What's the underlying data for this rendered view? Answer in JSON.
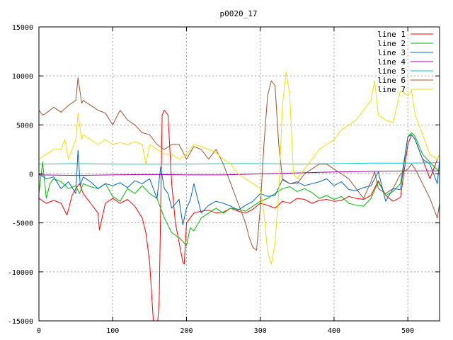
{
  "chart_data": {
    "type": "line",
    "title": "p0020_17",
    "xlabel": "",
    "ylabel": "",
    "xlim": [
      0,
      543
    ],
    "ylim": [
      -15000,
      15000
    ],
    "x_ticks": [
      0,
      100,
      200,
      300,
      400,
      500
    ],
    "y_ticks": [
      -15000,
      -10000,
      -5000,
      0,
      5000,
      10000,
      15000
    ],
    "grid": true,
    "legend_position": "top-right",
    "series": [
      {
        "name": "line 1",
        "color": "#ff0000",
        "x": [
          0,
          10,
          20,
          30,
          38,
          45,
          50,
          55,
          60,
          70,
          80,
          82,
          90,
          100,
          110,
          120,
          130,
          140,
          145,
          150,
          155,
          160,
          163,
          167,
          170,
          175,
          180,
          185,
          190,
          195,
          197,
          200,
          205,
          210,
          220,
          230,
          240,
          250,
          260,
          270,
          280,
          290,
          300,
          310,
          320,
          330,
          340,
          350,
          360,
          370,
          380,
          390,
          400,
          410,
          420,
          430,
          440,
          450,
          460,
          470,
          480,
          490,
          500,
          505,
          510,
          520,
          530,
          540,
          543
        ],
        "y": [
          -2500,
          -3000,
          -2700,
          -3000,
          -4200,
          -2200,
          -1500,
          -1000,
          -2000,
          -3000,
          -4000,
          -5700,
          -3000,
          -2500,
          -3000,
          -2600,
          -3300,
          -4500,
          -6000,
          -9000,
          -15000,
          -16000,
          -13000,
          6000,
          6500,
          6000,
          -1000,
          -5000,
          -7000,
          -9000,
          -9200,
          -5000,
          -4500,
          -4000,
          -3800,
          -3700,
          -4000,
          -3900,
          -3500,
          -3800,
          -4000,
          -3600,
          -3000,
          -3200,
          -3500,
          -2800,
          -3000,
          -2500,
          -2600,
          -3000,
          -2700,
          -2600,
          -2800,
          -2700,
          -2300,
          -2500,
          -2600,
          -2200,
          -700,
          -2200,
          -2800,
          -2400,
          3000,
          4000,
          3500,
          1500,
          -500,
          1500,
          2000
        ]
      },
      {
        "name": "line 2",
        "color": "#00bb00",
        "x": [
          0,
          5,
          10,
          15,
          20,
          30,
          40,
          50,
          55,
          60,
          70,
          80,
          90,
          100,
          110,
          120,
          130,
          140,
          150,
          160,
          170,
          180,
          190,
          200,
          205,
          210,
          220,
          230,
          240,
          250,
          260,
          270,
          280,
          290,
          300,
          310,
          320,
          330,
          340,
          350,
          360,
          370,
          380,
          390,
          400,
          410,
          420,
          430,
          440,
          450,
          460,
          470,
          480,
          490,
          500,
          505,
          510,
          520,
          530,
          540,
          543
        ],
        "y": [
          -2000,
          1200,
          -2500,
          -1000,
          -500,
          -800,
          -1500,
          -1200,
          -2000,
          -1000,
          -1300,
          -1500,
          -1000,
          -2300,
          -2800,
          -1500,
          -2000,
          -1200,
          -2000,
          -2500,
          -4500,
          -6000,
          -6500,
          -7300,
          -5500,
          -5800,
          -4500,
          -4000,
          -3500,
          -4000,
          -3500,
          -3600,
          -3800,
          -3300,
          -2800,
          -2500,
          -2000,
          -1500,
          -1300,
          -1800,
          -1500,
          -1900,
          -2500,
          -2200,
          -2600,
          -2300,
          -3000,
          -3200,
          -3300,
          -2500,
          -800,
          -2200,
          -1800,
          -1000,
          3800,
          4200,
          3800,
          2000,
          1200,
          400,
          300
        ]
      },
      {
        "name": "line 3",
        "color": "#0066cc",
        "x": [
          0,
          10,
          20,
          30,
          40,
          50,
          53,
          56,
          60,
          70,
          80,
          90,
          100,
          110,
          120,
          130,
          140,
          150,
          160,
          165,
          170,
          175,
          180,
          190,
          195,
          200,
          205,
          210,
          220,
          230,
          240,
          250,
          260,
          270,
          280,
          290,
          300,
          310,
          320,
          330,
          340,
          350,
          360,
          370,
          380,
          390,
          400,
          410,
          420,
          430,
          440,
          450,
          460,
          470,
          480,
          490,
          500,
          505,
          510,
          520,
          530,
          540,
          543
        ],
        "y": [
          0,
          -500,
          -300,
          -1500,
          -800,
          -2000,
          2400,
          -1200,
          -300,
          -800,
          -1500,
          -1000,
          -1200,
          -900,
          -1400,
          -700,
          -1000,
          -500,
          -2500,
          700,
          -1500,
          -2000,
          -3500,
          -2600,
          -5200,
          -3500,
          -2700,
          -1000,
          -4000,
          -3200,
          -2800,
          -3000,
          -3300,
          -3700,
          -3200,
          -2800,
          -2000,
          -2300,
          -2200,
          -600,
          -1000,
          -800,
          -1200,
          -1000,
          -800,
          -500,
          -1200,
          -800,
          -1600,
          -1700,
          -1400,
          -1200,
          200,
          -2800,
          -1500,
          -1600,
          3800,
          4000,
          3500,
          1500,
          1000,
          -1000,
          1500
        ]
      },
      {
        "name": "line 4",
        "color": "#aa00aa",
        "x": [
          0,
          50,
          100,
          150,
          200,
          250,
          300,
          350,
          400,
          450,
          500,
          543
        ],
        "y": [
          -100,
          -150,
          -100,
          -50,
          -100,
          -100,
          0,
          100,
          200,
          250,
          300,
          300
        ]
      },
      {
        "name": "line 5",
        "color": "#00cccc",
        "x": [
          0,
          50,
          100,
          150,
          200,
          250,
          300,
          350,
          400,
          450,
          500,
          543
        ],
        "y": [
          1000,
          1050,
          1000,
          1000,
          1000,
          1050,
          1050,
          1000,
          1050,
          1100,
          1100,
          1150
        ]
      },
      {
        "name": "line 6",
        "color": "#a0522d",
        "x": [
          0,
          5,
          10,
          20,
          30,
          40,
          50,
          53,
          58,
          60,
          70,
          80,
          90,
          100,
          110,
          120,
          130,
          140,
          150,
          160,
          170,
          180,
          190,
          200,
          210,
          220,
          230,
          240,
          250,
          260,
          270,
          280,
          285,
          290,
          295,
          300,
          305,
          310,
          315,
          320,
          325,
          330,
          340,
          350,
          360,
          370,
          380,
          390,
          400,
          410,
          420,
          430,
          440,
          450,
          455,
          460,
          470,
          480,
          490,
          500,
          505,
          510,
          520,
          530,
          540,
          543
        ],
        "y": [
          6500,
          6000,
          6200,
          6800,
          6300,
          7000,
          7500,
          9800,
          7200,
          7500,
          7000,
          6500,
          6200,
          5000,
          6500,
          5500,
          5000,
          4200,
          4000,
          3000,
          2500,
          3000,
          3000,
          1500,
          2800,
          2500,
          1500,
          2500,
          1000,
          -1000,
          -3000,
          -5000,
          -6500,
          -7500,
          -7800,
          -3500,
          3000,
          8000,
          9500,
          9000,
          3000,
          -500,
          -1000,
          -1000,
          0,
          500,
          1000,
          1000,
          500,
          0,
          -500,
          -1500,
          -2500,
          -800,
          200,
          -1500,
          -2000,
          -1500,
          0,
          500,
          1000,
          500,
          -1000,
          -2500,
          -4500,
          -3000
        ]
      },
      {
        "name": "line 7",
        "color": "#f0e000",
        "x": [
          0,
          10,
          20,
          30,
          35,
          40,
          50,
          53,
          58,
          60,
          70,
          80,
          90,
          100,
          110,
          120,
          130,
          140,
          145,
          150,
          160,
          170,
          180,
          190,
          200,
          210,
          220,
          230,
          240,
          250,
          260,
          270,
          280,
          290,
          300,
          305,
          310,
          315,
          320,
          325,
          330,
          335,
          340,
          345,
          350,
          360,
          370,
          380,
          390,
          400,
          410,
          420,
          430,
          440,
          450,
          455,
          460,
          470,
          480,
          490,
          500,
          505,
          510,
          520,
          530,
          540,
          543
        ],
        "y": [
          1500,
          2000,
          2500,
          2500,
          3500,
          1500,
          3500,
          6200,
          3500,
          4000,
          3500,
          3000,
          3500,
          3000,
          3200,
          3000,
          3300,
          3000,
          1000,
          3000,
          2500,
          2000,
          2000,
          1500,
          2000,
          3000,
          2800,
          2500,
          2200,
          1500,
          1000,
          0,
          -500,
          -1000,
          -1500,
          -4000,
          -8000,
          -9200,
          -7000,
          -2000,
          7000,
          10400,
          8000,
          0,
          -500,
          500,
          1500,
          2500,
          3000,
          3500,
          4500,
          5000,
          5500,
          6500,
          7500,
          9500,
          6000,
          5500,
          5200,
          8500,
          8000,
          8500,
          6000,
          4000,
          2000,
          1500,
          2000
        ]
      }
    ]
  }
}
